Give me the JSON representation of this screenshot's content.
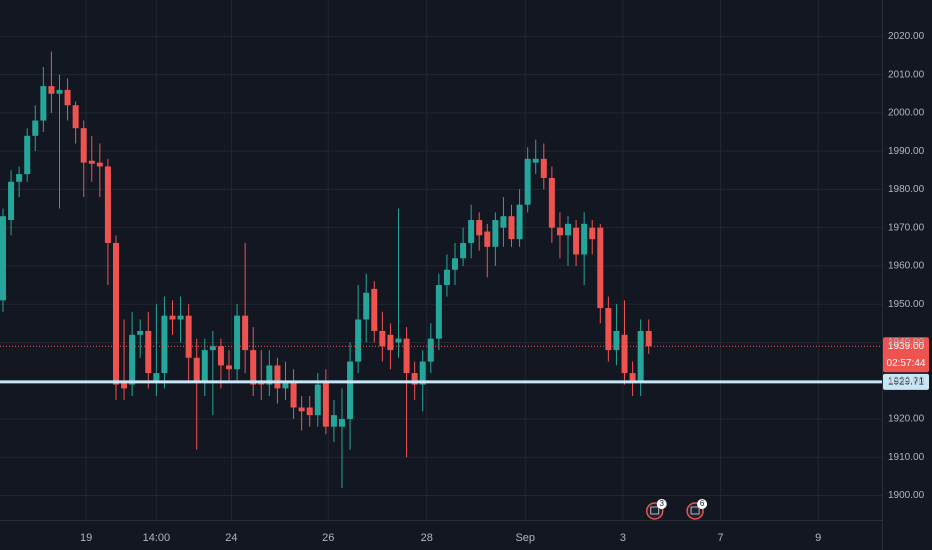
{
  "chart_data": {
    "type": "candlestick",
    "up_color": "#26a69a",
    "down_color": "#ef5350",
    "grid": true,
    "ylim": [
      1893.6,
      2029.5
    ],
    "yticks": [
      {
        "value": 1900,
        "label": "1900.00"
      },
      {
        "value": 1910,
        "label": "1910.00"
      },
      {
        "value": 1920,
        "label": "1920.00"
      },
      {
        "value": 1930,
        "label": "1930.00"
      },
      {
        "value": 1940,
        "label": "1940.00"
      },
      {
        "value": 1950,
        "label": "1950.00"
      },
      {
        "value": 1960,
        "label": "1960.00"
      },
      {
        "value": 1970,
        "label": "1970.00"
      },
      {
        "value": 1980,
        "label": "1980.00"
      },
      {
        "value": 1990,
        "label": "1990.00"
      },
      {
        "value": 2000,
        "label": "2000.00"
      },
      {
        "value": 2010,
        "label": "2010.00"
      },
      {
        "value": 2020,
        "label": "2020.00"
      }
    ],
    "xlim": [
      -0.37,
      108.9
    ],
    "xticks": [
      {
        "value": 10.3,
        "label": "19"
      },
      {
        "value": 19,
        "label": "14:00"
      },
      {
        "value": 28.3,
        "label": "24"
      },
      {
        "value": 40.3,
        "label": "26"
      },
      {
        "value": 52.5,
        "label": "28"
      },
      {
        "value": 64.7,
        "label": "Sep"
      },
      {
        "value": 76.8,
        "label": "3"
      },
      {
        "value": 88.9,
        "label": "7"
      },
      {
        "value": 101,
        "label": "9"
      }
    ],
    "open": [
      1951,
      1972,
      1982,
      1984,
      1994,
      1998,
      2007,
      2005,
      2006,
      2002,
      1996,
      1987.5,
      1987,
      1986,
      1966,
      1930,
      1929,
      1942,
      1943,
      1930,
      1932,
      1947,
      1946,
      1947,
      1936,
      1930,
      1938,
      1939,
      1934,
      1933,
      1947,
      1938,
      1930,
      1929,
      1934,
      1928,
      1930,
      1923,
      1923,
      1921,
      1930,
      1918,
      1918,
      1920,
      1935,
      1946,
      1954,
      1943,
      1942,
      1940,
      1941,
      1932,
      1929,
      1935,
      1941,
      1955,
      1959,
      1962,
      1966,
      1972,
      1969,
      1965,
      1970,
      1973,
      1967,
      1976,
      1987,
      1988,
      1983,
      1970,
      1968,
      1970,
      1963,
      1970,
      1970,
      1949,
      1938,
      1942,
      1932,
      1930,
      1943
    ],
    "high": [
      1975,
      1985,
      1986,
      1996,
      2002,
      2012,
      2016,
      2010,
      2009,
      2003,
      1998,
      1994,
      1992,
      1988,
      1968,
      1946,
      1948,
      1946,
      1948,
      1950,
      1952,
      1951,
      1952,
      1950,
      1941,
      1941,
      1943,
      1941,
      1938,
      1950,
      1966,
      1944,
      1938,
      1938,
      1936,
      1935,
      1933,
      1926,
      1926,
      1932,
      1933,
      1925,
      1928,
      1940,
      1955,
      1958,
      1956,
      1948,
      1945,
      1975,
      1944,
      1935,
      1938,
      1945,
      1958,
      1963,
      1966,
      1970,
      1976,
      1974,
      1971,
      1974,
      1978,
      1976,
      1980,
      1991,
      1993,
      1992,
      1986,
      1974,
      1973,
      1972,
      1974,
      1972,
      1971,
      1952,
      1950,
      1951,
      1935,
      1946,
      1946
    ],
    "low": [
      1948,
      1968,
      1978,
      1982,
      1990,
      1995,
      2000,
      1975,
      1998,
      1992,
      1978,
      1982,
      1978,
      1955,
      1925,
      1925,
      1926,
      1936,
      1928,
      1926,
      1928,
      1942,
      1940,
      1930,
      1912,
      1926,
      1921,
      1928,
      1930,
      1930,
      1932,
      1926,
      1925,
      1926,
      1924,
      1925,
      1920,
      1917,
      1918,
      1918,
      1916,
      1914,
      1902,
      1912,
      1932,
      1940,
      1940,
      1935,
      1933,
      1936,
      1910,
      1925,
      1922,
      1932,
      1938,
      1952,
      1955,
      1960,
      1962,
      1964,
      1957,
      1960,
      1965,
      1965,
      1965,
      1974,
      1984,
      1980,
      1966,
      1962,
      1960,
      1960,
      1955,
      1963,
      1945,
      1935,
      1934,
      1929,
      1926,
      1926,
      1937
    ],
    "close": [
      1973,
      1982,
      1984,
      1994,
      1998,
      2007,
      2005,
      2006,
      2002,
      1996,
      1987,
      1986.7,
      1986,
      1966,
      1929,
      1928,
      1942,
      1943,
      1932,
      1932,
      1947,
      1946,
      1947,
      1936,
      1930,
      1938,
      1939,
      1934,
      1933,
      1947,
      1938,
      1929,
      1929,
      1934,
      1928,
      1930,
      1923,
      1922,
      1921,
      1929,
      1918,
      1921,
      1920,
      1935,
      1946,
      1953,
      1943,
      1939,
      1938,
      1941,
      1932,
      1929,
      1935,
      1941,
      1955,
      1959,
      1962,
      1966,
      1972,
      1968,
      1965,
      1972,
      1973,
      1967,
      1976,
      1988,
      1988,
      1983,
      1970,
      1968,
      1971,
      1963,
      1971,
      1967,
      1949,
      1938,
      1943,
      1932,
      1930,
      1943,
      1939
    ],
    "last_price": {
      "value": 1939,
      "label": "1939.00",
      "countdown": "02:57:44"
    },
    "horizontal_line": {
      "value": 1929.71,
      "label": "1929.71",
      "color": "#c8e6f5"
    },
    "events": [
      {
        "x": 80,
        "label": "3"
      },
      {
        "x": 85,
        "label": "6"
      }
    ]
  }
}
